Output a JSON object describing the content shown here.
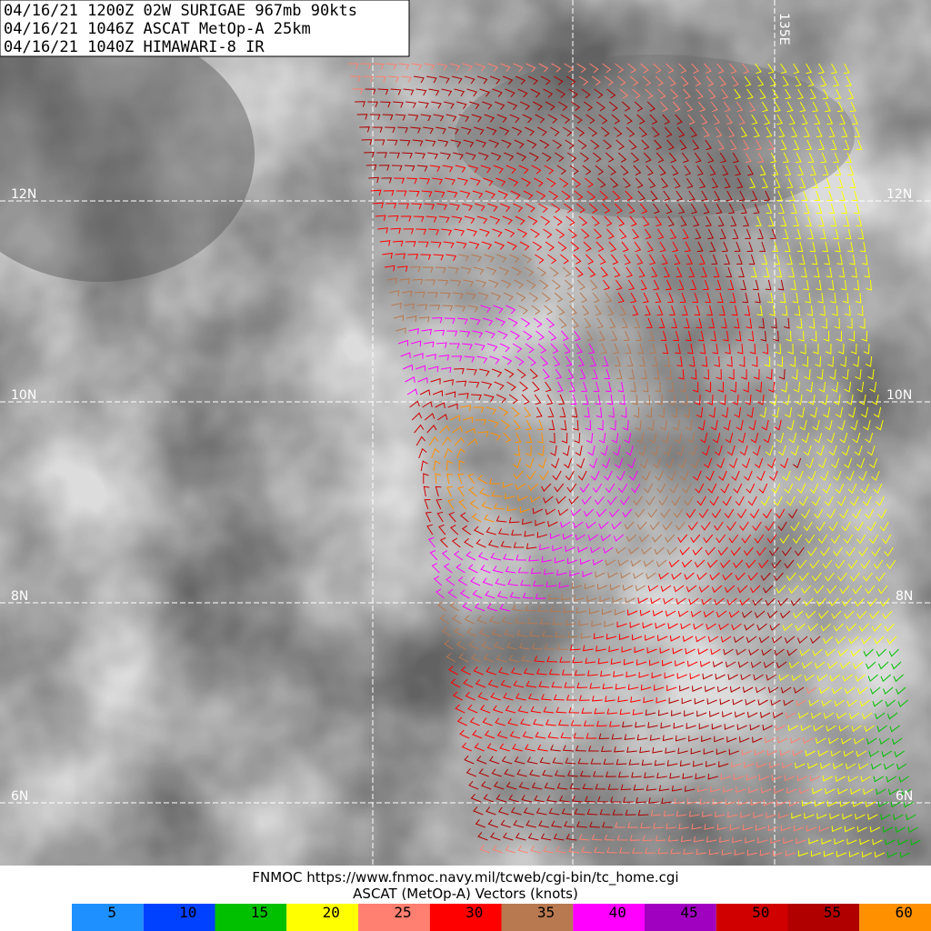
{
  "header": {
    "lines": [
      "04/16/21 1200Z  02W SURIGAE 967mb 90kts",
      "04/16/21 1046Z  ASCAT MetOp-A 25km",
      "04/16/21 1040Z  HIMAWARI-8 IR"
    ]
  },
  "grid": {
    "latitudes": [
      "12N",
      "10N",
      "8N",
      "6N"
    ],
    "longitude": "135E"
  },
  "footer": {
    "source": "FNMOC https://www.fnmoc.navy.mil/tcweb/cgi-bin/tc_home.cgi",
    "caption": "ASCAT (MetOp-A) Vectors (knots)"
  },
  "legend": {
    "items": [
      {
        "label": 5,
        "color": "#1e90ff"
      },
      {
        "label": 10,
        "color": "#0040ff"
      },
      {
        "label": 15,
        "color": "#00c000"
      },
      {
        "label": 20,
        "color": "#ffff00"
      },
      {
        "label": 25,
        "color": "#ff8070"
      },
      {
        "label": 30,
        "color": "#ff0000"
      },
      {
        "label": 35,
        "color": "#b87850"
      },
      {
        "label": 40,
        "color": "#ff00ff"
      },
      {
        "label": 45,
        "color": "#a000c0"
      },
      {
        "label": 50,
        "color": "#d00000"
      },
      {
        "label": 55,
        "color": "#b00000"
      },
      {
        "label": 60,
        "color": "#ff9000"
      }
    ]
  }
}
